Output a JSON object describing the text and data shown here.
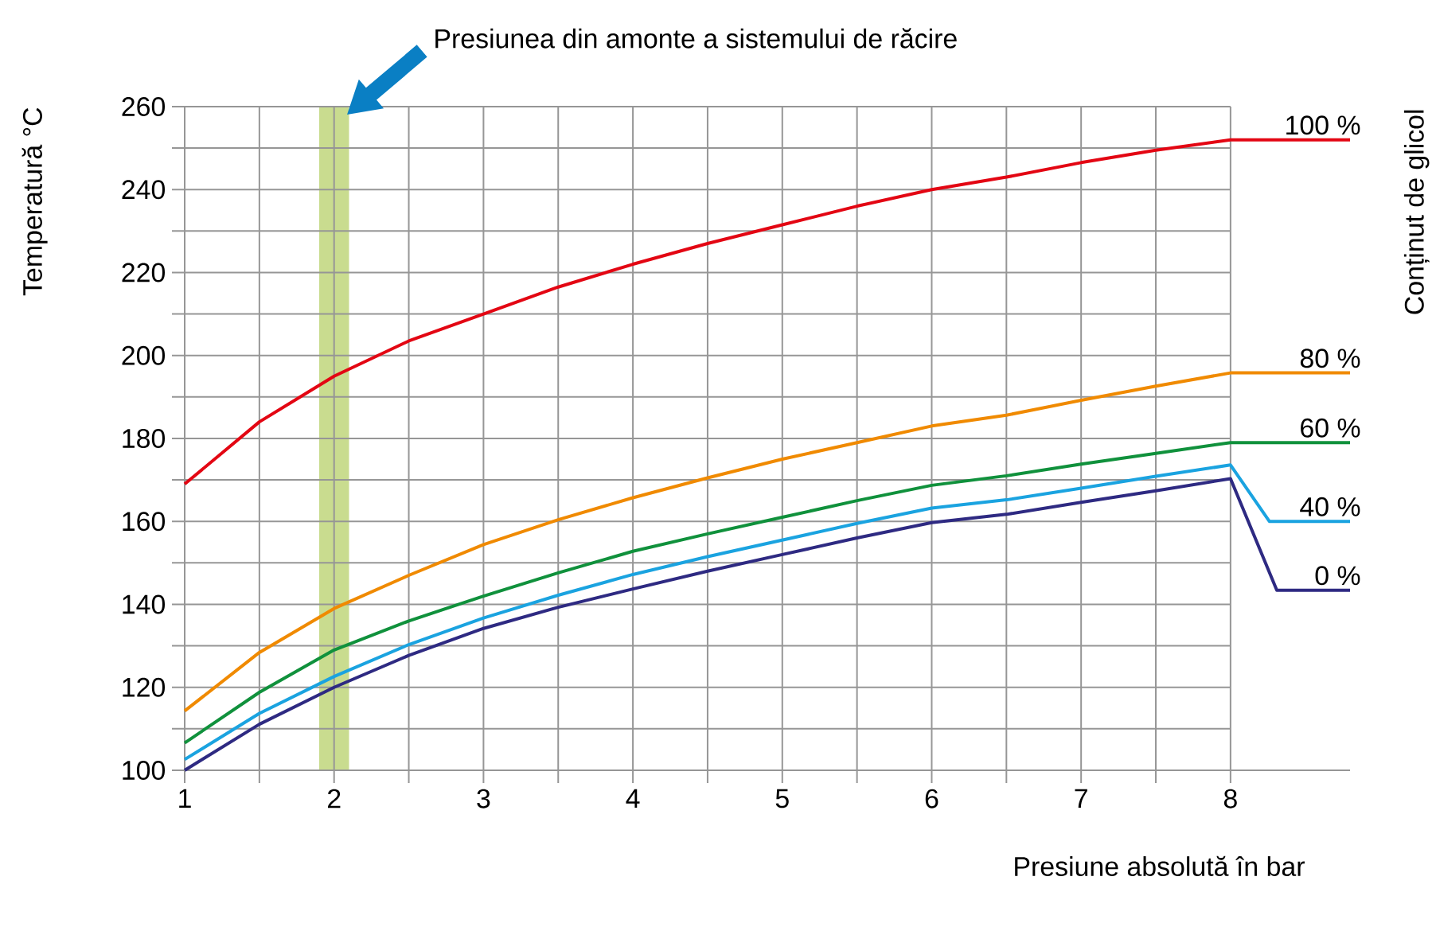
{
  "chart_data": {
    "type": "line",
    "xlabel": "Presiune absolută în bar",
    "ylabel": "Temperatură °C",
    "legend_title": "Conținut de glicol",
    "xlim": [
      1,
      8.8
    ],
    "ylim": [
      100,
      260
    ],
    "xticks": [
      1,
      2,
      3,
      4,
      5,
      6,
      7,
      8
    ],
    "yticks": [
      100,
      120,
      140,
      160,
      180,
      200,
      220,
      240,
      260
    ],
    "grid": true,
    "bands": [
      {
        "axis": "x",
        "from": 1.9,
        "to": 2.1,
        "color": "#c9dc8f"
      }
    ],
    "annotations": [
      "Presiunea din amonte a sistemului de răcire"
    ],
    "series": [
      {
        "name": "100 %",
        "color": "#e30613",
        "x": [
          1,
          1.5,
          2,
          2.5,
          3,
          3.5,
          4,
          4.5,
          5,
          5.5,
          6,
          6.5,
          7,
          7.5,
          8,
          8.8
        ],
        "values": [
          169,
          184,
          195,
          203.5,
          210,
          216.5,
          222,
          227,
          231.5,
          236,
          240,
          243,
          246.5,
          249.5,
          252,
          252
        ]
      },
      {
        "name": "80 %",
        "color": "#f08a00",
        "x": [
          1,
          1.5,
          2,
          2.5,
          3,
          3.5,
          4,
          4.5,
          5,
          5.5,
          6,
          6.5,
          7,
          7.5,
          8,
          8.8
        ],
        "values": [
          114.3,
          128.4,
          139,
          147,
          154.4,
          160.4,
          165.7,
          170.5,
          175,
          179,
          183,
          185.6,
          189.2,
          192.6,
          195.8,
          195.8
        ]
      },
      {
        "name": "60 %",
        "color": "#10913c",
        "x": [
          1,
          1.5,
          2,
          2.5,
          3,
          3.5,
          4,
          4.5,
          5,
          5.5,
          6,
          6.5,
          7,
          7.5,
          8,
          8.8
        ],
        "values": [
          106.6,
          118.8,
          129,
          136,
          142,
          147.6,
          152.8,
          157,
          161,
          165,
          168.7,
          171,
          173.8,
          176.4,
          179,
          179
        ]
      },
      {
        "name": "40 %",
        "color": "#1aa3e0",
        "x": [
          1,
          1.5,
          2,
          2.5,
          3,
          3.5,
          4,
          4.5,
          5,
          5.5,
          6,
          6.5,
          7,
          7.5,
          8,
          8.26,
          8.8
        ],
        "values": [
          102.6,
          113.7,
          122.6,
          130.3,
          136.7,
          142.2,
          147.2,
          151.5,
          155.5,
          159.5,
          163.2,
          165.2,
          168,
          170.9,
          173.6,
          160,
          160
        ]
      },
      {
        "name": "0 %",
        "color": "#2e2a82",
        "x": [
          1,
          1.5,
          2,
          2.5,
          3,
          3.5,
          4,
          4.5,
          5,
          5.5,
          6,
          6.5,
          7,
          7.5,
          8,
          8.31,
          8.8
        ],
        "values": [
          100,
          111.1,
          120,
          127.7,
          134.2,
          139.3,
          143.7,
          148,
          152,
          156,
          159.7,
          161.7,
          164.6,
          167.4,
          170.3,
          143.4,
          143.4
        ]
      }
    ]
  }
}
